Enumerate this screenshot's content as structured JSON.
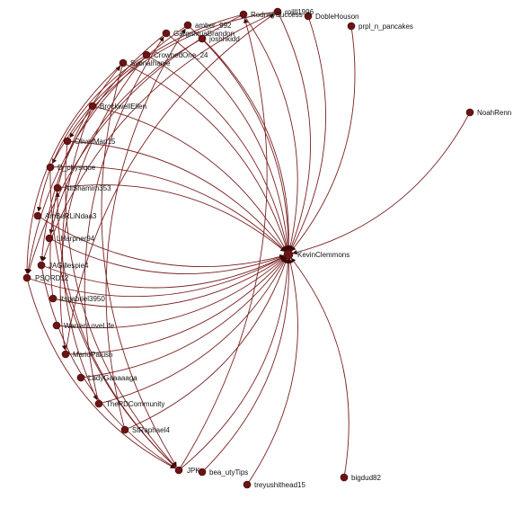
{
  "graph": {
    "hub": "KevinClemmons",
    "nodes": [
      {
        "id": "KevinClemmons",
        "label": "KevinClemmons"
      },
      {
        "id": "NoahRenn",
        "label": "NoahRenn"
      },
      {
        "id": "prpl_n_pancakes",
        "label": "prpl_n_pancakes"
      },
      {
        "id": "DobleHouson",
        "label": "DobleHouson"
      },
      {
        "id": "rojlll1996",
        "label": "rojlll1996"
      },
      {
        "id": "RodneySuccess",
        "label": "RodneySuccess"
      },
      {
        "id": "amber_992",
        "label": "amber_992"
      },
      {
        "id": "GargantuaBrandon",
        "label": "GargantuaBrandon"
      },
      {
        "id": "joshhkidd",
        "label": "joshhkidd"
      },
      {
        "id": "CrownedOne_24",
        "label": "CrownedOne_24"
      },
      {
        "id": "SyonaIhanie",
        "label": "SyonaIhanie"
      },
      {
        "id": "BrockwellEllen",
        "label": "BrockwellEllen"
      },
      {
        "id": "OliverMan15",
        "label": "OliverMan15"
      },
      {
        "id": "D_physique",
        "label": "D_physique"
      },
      {
        "id": "AliShamim353",
        "label": "AliShamim353"
      },
      {
        "id": "AmBeRLiNdaa3",
        "label": "AmBeRLiNdaa3"
      },
      {
        "id": "LHarpner94",
        "label": "LHarpner94"
      },
      {
        "id": "JAGillespie4",
        "label": "JAGillespie4"
      },
      {
        "id": "PSQRD12",
        "label": "PSQRD12"
      },
      {
        "id": "itsgabriel3950",
        "label": "itsgabriel3950"
      },
      {
        "id": "WarrenLoveLife",
        "label": "WarrenLoveLife"
      },
      {
        "id": "MarioPalush",
        "label": "MarioPalush"
      },
      {
        "id": "LadyGaaaaaga",
        "label": "LadyGaaaaaga"
      },
      {
        "id": "ThePDCommunity",
        "label": "ThePDCommunity"
      },
      {
        "id": "StRaphael4",
        "label": "StRaphael4"
      },
      {
        "id": "JPK",
        "label": "JPK"
      },
      {
        "id": "bea_utyTips",
        "label": "bea_utyTips"
      },
      {
        "id": "treyushithead15",
        "label": "treyushithead15"
      },
      {
        "id": "bigdud82",
        "label": "bigdud82"
      }
    ],
    "edges": [
      [
        "NoahRenn",
        "KevinClemmons"
      ],
      [
        "prpl_n_pancakes",
        "KevinClemmons"
      ],
      [
        "DobleHouson",
        "KevinClemmons"
      ],
      [
        "rojlll1996",
        "KevinClemmons"
      ],
      [
        "RodneySuccess",
        "KevinClemmons"
      ],
      [
        "amber_992",
        "KevinClemmons"
      ],
      [
        "GargantuaBrandon",
        "KevinClemmons"
      ],
      [
        "joshhkidd",
        "KevinClemmons"
      ],
      [
        "CrownedOne_24",
        "KevinClemmons"
      ],
      [
        "SyonaIhanie",
        "KevinClemmons"
      ],
      [
        "BrockwellEllen",
        "KevinClemmons"
      ],
      [
        "OliverMan15",
        "KevinClemmons"
      ],
      [
        "D_physique",
        "KevinClemmons"
      ],
      [
        "AliShamim353",
        "KevinClemmons"
      ],
      [
        "AmBeRLiNdaa3",
        "KevinClemmons"
      ],
      [
        "LHarpner94",
        "KevinClemmons"
      ],
      [
        "JAGillespie4",
        "KevinClemmons"
      ],
      [
        "PSQRD12",
        "KevinClemmons"
      ],
      [
        "itsgabriel3950",
        "KevinClemmons"
      ],
      [
        "WarrenLoveLife",
        "KevinClemmons"
      ],
      [
        "MarioPalush",
        "KevinClemmons"
      ],
      [
        "LadyGaaaaaga",
        "KevinClemmons"
      ],
      [
        "ThePDCommunity",
        "KevinClemmons"
      ],
      [
        "StRaphael4",
        "KevinClemmons"
      ],
      [
        "JPK",
        "KevinClemmons"
      ],
      [
        "bea_utyTips",
        "KevinClemmons"
      ],
      [
        "treyushithead15",
        "KevinClemmons"
      ],
      [
        "bigdud82",
        "KevinClemmons"
      ],
      [
        "RodneySuccess",
        "PSQRD12"
      ],
      [
        "RodneySuccess",
        "D_physique"
      ],
      [
        "rojlll1996",
        "OliverMan15"
      ],
      [
        "rojlll1996",
        "JAGillespie4"
      ],
      [
        "amber_992",
        "PSQRD12"
      ],
      [
        "GargantuaBrandon",
        "JAGillespie4"
      ],
      [
        "SyonaIhanie",
        "PSQRD12"
      ],
      [
        "SyonaIhanie",
        "JPK"
      ],
      [
        "joshhkidd",
        "LHarpner94"
      ],
      [
        "CrownedOne_24",
        "AmBeRLiNdaa3"
      ],
      [
        "CrownedOne_24",
        "MarioPalush"
      ],
      [
        "BrockwellEllen",
        "ThePDCommunity"
      ],
      [
        "OliverMan15",
        "JPK"
      ],
      [
        "D_physique",
        "JPK"
      ],
      [
        "PSQRD12",
        "JPK"
      ],
      [
        "JAGillespie4",
        "JPK"
      ],
      [
        "JPK",
        "RodneySuccess"
      ],
      [
        "JPK",
        "AliShamim353"
      ],
      [
        "StRaphael4",
        "amber_992"
      ],
      [
        "ThePDCommunity",
        "GargantuaBrandon"
      ],
      [
        "MarioPalush",
        "rojlll1996"
      ],
      [
        "itsgabriel3950",
        "SyonaIhanie"
      ]
    ]
  }
}
